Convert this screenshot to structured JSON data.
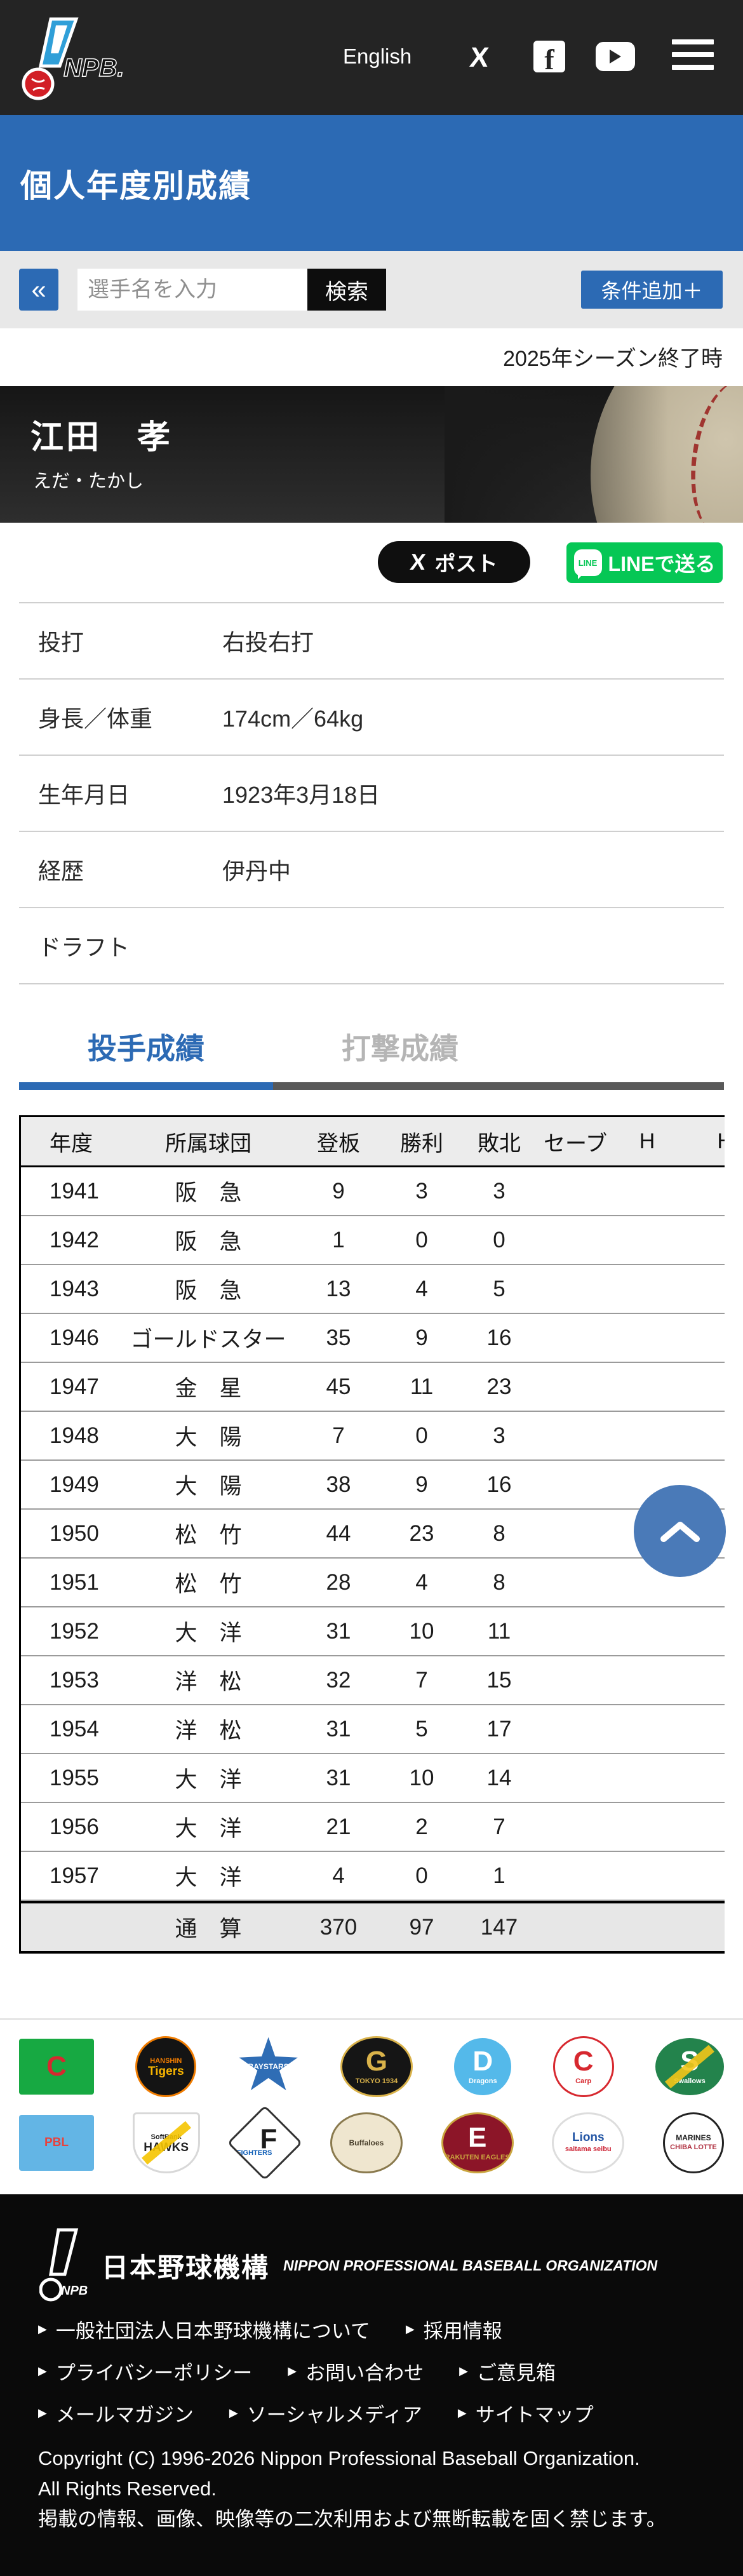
{
  "colors": {
    "accent_blue": "#2c6ab4",
    "search_button_black": "#0d0d0d",
    "line_green": "#06c755",
    "tab_inactive": "#b5b5b5",
    "header_dark": "#242424"
  },
  "header": {
    "logo_text": "NPB",
    "english_link": "English"
  },
  "page_title": "個人年度別成績",
  "search": {
    "collapse_button": "«",
    "placeholder": "選手名を入力",
    "button": "検索",
    "add_condition": "条件追加＋"
  },
  "season_note": "2025年シーズン終了時",
  "player": {
    "name": "江田　孝",
    "kana": "えだ・たかし"
  },
  "share": {
    "x_post": "ポスト",
    "line": "LINEで送る"
  },
  "profile_rows": [
    {
      "label": "投打",
      "value": "右投右打"
    },
    {
      "label": "身長／体重",
      "value": "174cm／64kg"
    },
    {
      "label": "生年月日",
      "value": "1923年3月18日"
    },
    {
      "label": "経歴",
      "value": "伊丹中"
    },
    {
      "label": "ドラフト",
      "value": ""
    }
  ],
  "tabs": {
    "pitching": "投手成績",
    "batting": "打撃成績"
  },
  "stats_table": {
    "columns": [
      "年度",
      "所属球団",
      "登板",
      "勝利",
      "敗北",
      "セーブ",
      "H",
      "HP"
    ],
    "rows": [
      [
        "1941",
        "阪　急",
        "9",
        "3",
        "3",
        "",
        "",
        ""
      ],
      [
        "1942",
        "阪　急",
        "1",
        "0",
        "0",
        "",
        "",
        ""
      ],
      [
        "1943",
        "阪　急",
        "13",
        "4",
        "5",
        "",
        "",
        ""
      ],
      [
        "1946",
        "ゴールドスター",
        "35",
        "9",
        "16",
        "",
        "",
        ""
      ],
      [
        "1947",
        "金　星",
        "45",
        "11",
        "23",
        "",
        "",
        ""
      ],
      [
        "1948",
        "大　陽",
        "7",
        "0",
        "3",
        "",
        "",
        ""
      ],
      [
        "1949",
        "大　陽",
        "38",
        "9",
        "16",
        "",
        "",
        ""
      ],
      [
        "1950",
        "松　竹",
        "44",
        "23",
        "8",
        "",
        "",
        ""
      ],
      [
        "1951",
        "松　竹",
        "28",
        "4",
        "8",
        "",
        "",
        ""
      ],
      [
        "1952",
        "大　洋",
        "31",
        "10",
        "11",
        "",
        "",
        ""
      ],
      [
        "1953",
        "洋　松",
        "32",
        "7",
        "15",
        "",
        "",
        ""
      ],
      [
        "1954",
        "洋　松",
        "31",
        "5",
        "17",
        "",
        "",
        ""
      ],
      [
        "1955",
        "大　洋",
        "31",
        "10",
        "14",
        "",
        "",
        ""
      ],
      [
        "1956",
        "大　洋",
        "21",
        "2",
        "7",
        "",
        "",
        ""
      ],
      [
        "1957",
        "大　洋",
        "4",
        "0",
        "1",
        "",
        "",
        ""
      ]
    ],
    "total_row": [
      "",
      "通　算",
      "370",
      "97",
      "147",
      "",
      "",
      ""
    ]
  },
  "team_logos": {
    "row1": [
      {
        "id": "central-league",
        "label": "C",
        "sub": "",
        "shape": "square",
        "bg": "#17a942",
        "fg": "#d7282f",
        "border": "",
        "subcolor": "",
        "accent": ""
      },
      {
        "id": "hanshin-tigers",
        "label": "Tigers",
        "sub": "HANSHIN",
        "shape": "circle",
        "bg": "#141414",
        "fg": "#f8b500",
        "border": "#f07c00",
        "subcolor": "#f07c00",
        "accent": ""
      },
      {
        "id": "yokohama-baystars",
        "label": "BAYSTARS",
        "sub": "",
        "shape": "star",
        "bg": "#2f6db5",
        "fg": "#ffffff",
        "border": "",
        "subcolor": "",
        "accent": ""
      },
      {
        "id": "yomiuri-giants",
        "label": "G",
        "sub": "TOKYO 1934",
        "shape": "ellipse",
        "bg": "#151515",
        "fg": "#d9b24a",
        "border": "#d9b24a",
        "subcolor": "#d9b24a",
        "accent": ""
      },
      {
        "id": "chunichi-dragons",
        "label": "D",
        "sub": "Dragons",
        "shape": "circle",
        "bg": "#54b9ea",
        "fg": "#ffffff",
        "border": "",
        "subcolor": "#ffffff",
        "accent": ""
      },
      {
        "id": "hiroshima-carp",
        "label": "C",
        "sub": "Carp",
        "shape": "circle",
        "bg": "#ffffff",
        "fg": "#d7282f",
        "border": "#d7282f",
        "subcolor": "#d7282f",
        "accent": ""
      },
      {
        "id": "yakult-swallows",
        "label": "S",
        "sub": "Swallows",
        "shape": "ellipse",
        "bg": "#23834c",
        "fg": "#ffffff",
        "border": "",
        "subcolor": "#ffffff",
        "accent": "#f3c518"
      }
    ],
    "row2": [
      {
        "id": "pacific-league",
        "label": "PBL",
        "sub": "",
        "shape": "square",
        "bg": "#63b5e5",
        "fg": "#e8413c",
        "border": "",
        "subcolor": "",
        "accent": ""
      },
      {
        "id": "softbank-hawks",
        "label": "HAWKS",
        "sub": "SoftBank",
        "shape": "shield",
        "bg": "#ffffff",
        "fg": "#222222",
        "border": "#d8d8d8",
        "subcolor": "#222222",
        "accent": "#f5c400"
      },
      {
        "id": "nipponham-fighters",
        "label": "F",
        "sub": "FIGHTERS",
        "shape": "diamond",
        "bg": "#ffffff",
        "fg": "#1b1b1b",
        "border": "#333333",
        "subcolor": "#0b5bb5",
        "accent": ""
      },
      {
        "id": "orix-buffaloes",
        "label": "Buffaloes",
        "sub": "",
        "shape": "ellipse",
        "bg": "#efe6cf",
        "fg": "#463c28",
        "border": "#8a7a4e",
        "subcolor": "",
        "accent": ""
      },
      {
        "id": "rakuten-eagles",
        "label": "E",
        "sub": "RAKUTEN EAGLES",
        "shape": "ellipse",
        "bg": "#8c1528",
        "fg": "#ffffff",
        "border": "#caa53f",
        "subcolor": "#caa53f",
        "accent": ""
      },
      {
        "id": "seibu-lions",
        "label": "Lions",
        "sub": "saitama seibu",
        "shape": "ellipse",
        "bg": "#ffffff",
        "fg": "#2456a5",
        "border": "#dddddd",
        "subcolor": "#cc2233",
        "accent": ""
      },
      {
        "id": "lotte-marines",
        "label": "MARINES",
        "sub": "CHIBA LOTTE",
        "shape": "circle",
        "bg": "#ffffff",
        "fg": "#222222",
        "border": "#222222",
        "subcolor": "#b03040",
        "accent": ""
      }
    ]
  },
  "scroll_top": {
    "label": "to top"
  },
  "footer": {
    "org_name_jp": "日本野球機構",
    "org_name_en": "NIPPON PROFESSIONAL BASEBALL ORGANIZATION",
    "links_row1": [
      "一般社団法人日本野球機構について",
      "採用情報"
    ],
    "links_row2": [
      "プライバシーポリシー",
      "お問い合わせ",
      "ご意見箱"
    ],
    "links_row3": [
      "メールマガジン",
      "ソーシャルメディア",
      "サイトマップ"
    ],
    "copyright_line1": "Copyright (C) 1996-2026 Nippon Professional Baseball Organization.",
    "copyright_line2": "All Rights Reserved.",
    "copyright_line3": "掲載の情報、画像、映像等の二次利用および無断転載を固く禁じます。"
  }
}
